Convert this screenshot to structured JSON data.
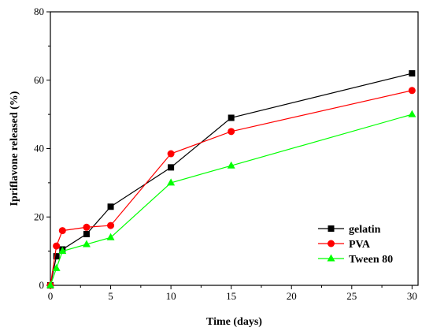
{
  "chart_data": {
    "type": "line",
    "title": "",
    "xlabel": "Time (days)",
    "ylabel": "Ipriflavone released (%)",
    "xlim": [
      0,
      30.5
    ],
    "ylim": [
      0,
      80
    ],
    "xticks": [
      0,
      5,
      10,
      15,
      20,
      25,
      30
    ],
    "yticks": [
      0,
      20,
      40,
      60,
      80
    ],
    "x_tick_labels": [
      "0",
      "5",
      "10",
      "15",
      "20",
      "25",
      "30"
    ],
    "y_tick_labels": [
      "0",
      "20",
      "40",
      "60",
      "80"
    ],
    "grid": false,
    "legend_position": "bottom-right",
    "series": [
      {
        "name": "gelatin",
        "color": "#000000",
        "marker": "square",
        "x": [
          0,
          0.5,
          1,
          3,
          5,
          10,
          15,
          30
        ],
        "y": [
          0,
          8.5,
          10.5,
          15,
          23,
          34.5,
          49,
          62
        ]
      },
      {
        "name": "PVA",
        "color": "#ff0000",
        "marker": "circle",
        "x": [
          0,
          0.5,
          1,
          3,
          5,
          10,
          15,
          30
        ],
        "y": [
          0,
          11.5,
          16,
          17,
          17.5,
          38.5,
          45,
          57
        ]
      },
      {
        "name": "Tween 80",
        "color": "#00ff00",
        "marker": "triangle",
        "x": [
          0,
          0.5,
          1,
          3,
          5,
          10,
          15,
          30
        ],
        "y": [
          0,
          5,
          10,
          12,
          14,
          30,
          35,
          50
        ]
      }
    ]
  }
}
